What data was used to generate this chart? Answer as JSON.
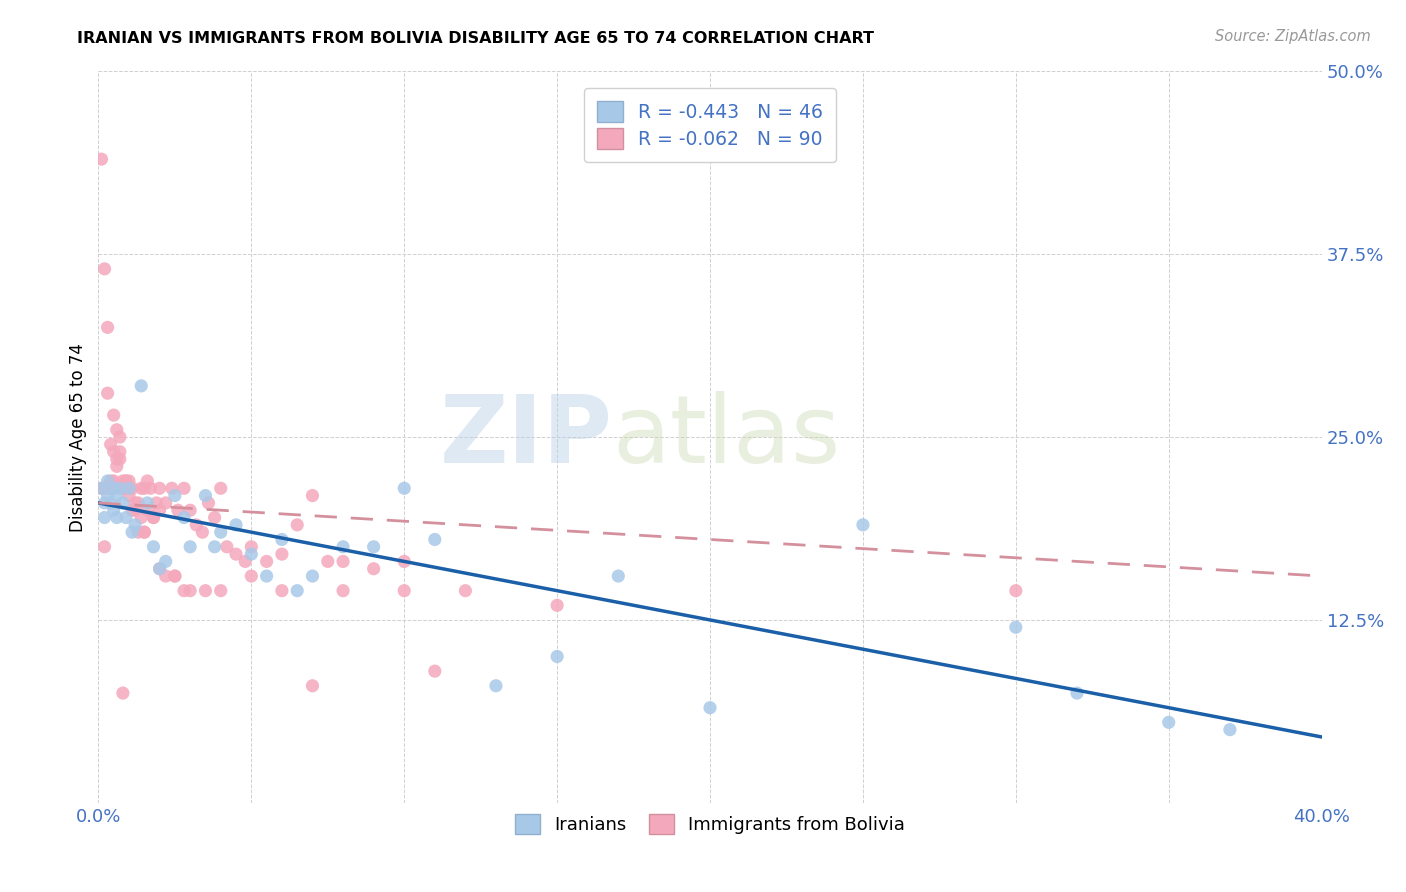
{
  "title": "IRANIAN VS IMMIGRANTS FROM BOLIVIA DISABILITY AGE 65 TO 74 CORRELATION CHART",
  "source": "Source: ZipAtlas.com",
  "ylabel": "Disability Age 65 to 74",
  "xlim": [
    0.0,
    0.4
  ],
  "ylim": [
    0.0,
    0.5
  ],
  "xticks": [
    0.0,
    0.05,
    0.1,
    0.15,
    0.2,
    0.25,
    0.3,
    0.35,
    0.4
  ],
  "yticks": [
    0.0,
    0.125,
    0.25,
    0.375,
    0.5
  ],
  "ytick_labels": [
    "",
    "12.5%",
    "25.0%",
    "37.5%",
    "50.0%"
  ],
  "xtick_labels": [
    "0.0%",
    "",
    "",
    "",
    "",
    "",
    "",
    "",
    "40.0%"
  ],
  "iranians_R": -0.443,
  "iranians_N": 46,
  "bolivia_R": -0.062,
  "bolivia_N": 90,
  "iranian_color": "#a8c8e8",
  "bolivia_color": "#f4a8bc",
  "iranian_line_color": "#1a5fa8",
  "bolivia_line_color": "#d4909c",
  "watermark_zip": "ZIP",
  "watermark_atlas": "atlas",
  "legend_label_iranian": "Iranians",
  "legend_label_bolivia": "Immigrants from Bolivia",
  "iranian_line_x0": 0.0,
  "iranian_line_y0": 0.205,
  "iranian_line_x1": 0.4,
  "iranian_line_y1": 0.045,
  "bolivia_line_x0": 0.0,
  "bolivia_line_y0": 0.205,
  "bolivia_line_x1": 0.4,
  "bolivia_line_y1": 0.155,
  "iranians_x": [
    0.001,
    0.002,
    0.002,
    0.003,
    0.003,
    0.004,
    0.005,
    0.005,
    0.006,
    0.006,
    0.007,
    0.008,
    0.009,
    0.01,
    0.011,
    0.012,
    0.014,
    0.016,
    0.018,
    0.02,
    0.022,
    0.025,
    0.028,
    0.03,
    0.035,
    0.038,
    0.04,
    0.045,
    0.05,
    0.055,
    0.06,
    0.065,
    0.07,
    0.08,
    0.09,
    0.1,
    0.11,
    0.13,
    0.15,
    0.17,
    0.2,
    0.25,
    0.3,
    0.32,
    0.35,
    0.37
  ],
  "iranians_y": [
    0.215,
    0.205,
    0.195,
    0.21,
    0.22,
    0.205,
    0.215,
    0.2,
    0.195,
    0.21,
    0.215,
    0.205,
    0.195,
    0.215,
    0.185,
    0.19,
    0.285,
    0.205,
    0.175,
    0.16,
    0.165,
    0.21,
    0.195,
    0.175,
    0.21,
    0.175,
    0.185,
    0.19,
    0.17,
    0.155,
    0.18,
    0.145,
    0.155,
    0.175,
    0.175,
    0.215,
    0.18,
    0.08,
    0.1,
    0.155,
    0.065,
    0.19,
    0.12,
    0.075,
    0.055,
    0.05
  ],
  "bolivia_x": [
    0.001,
    0.001,
    0.002,
    0.002,
    0.003,
    0.003,
    0.003,
    0.004,
    0.004,
    0.005,
    0.005,
    0.005,
    0.006,
    0.006,
    0.007,
    0.007,
    0.008,
    0.008,
    0.009,
    0.009,
    0.01,
    0.01,
    0.011,
    0.012,
    0.013,
    0.014,
    0.015,
    0.015,
    0.016,
    0.017,
    0.018,
    0.019,
    0.02,
    0.02,
    0.022,
    0.024,
    0.025,
    0.026,
    0.028,
    0.03,
    0.032,
    0.034,
    0.036,
    0.038,
    0.04,
    0.042,
    0.045,
    0.048,
    0.05,
    0.055,
    0.06,
    0.065,
    0.07,
    0.075,
    0.08,
    0.09,
    0.1,
    0.11,
    0.12,
    0.15,
    0.002,
    0.003,
    0.004,
    0.005,
    0.006,
    0.007,
    0.008,
    0.009,
    0.01,
    0.011,
    0.012,
    0.013,
    0.014,
    0.015,
    0.016,
    0.018,
    0.02,
    0.022,
    0.025,
    0.028,
    0.03,
    0.035,
    0.04,
    0.05,
    0.06,
    0.07,
    0.08,
    0.1,
    0.3,
    0.008
  ],
  "bolivia_y": [
    0.215,
    0.44,
    0.215,
    0.365,
    0.215,
    0.28,
    0.325,
    0.215,
    0.245,
    0.24,
    0.265,
    0.215,
    0.235,
    0.255,
    0.235,
    0.25,
    0.215,
    0.22,
    0.215,
    0.22,
    0.21,
    0.22,
    0.215,
    0.205,
    0.205,
    0.215,
    0.215,
    0.185,
    0.2,
    0.215,
    0.195,
    0.205,
    0.2,
    0.215,
    0.205,
    0.215,
    0.155,
    0.2,
    0.215,
    0.2,
    0.19,
    0.185,
    0.205,
    0.195,
    0.215,
    0.175,
    0.17,
    0.165,
    0.175,
    0.165,
    0.17,
    0.19,
    0.21,
    0.165,
    0.165,
    0.16,
    0.165,
    0.09,
    0.145,
    0.135,
    0.175,
    0.215,
    0.22,
    0.22,
    0.23,
    0.24,
    0.215,
    0.22,
    0.215,
    0.2,
    0.2,
    0.185,
    0.195,
    0.185,
    0.22,
    0.195,
    0.16,
    0.155,
    0.155,
    0.145,
    0.145,
    0.145,
    0.145,
    0.155,
    0.145,
    0.08,
    0.145,
    0.145,
    0.145,
    0.075
  ]
}
